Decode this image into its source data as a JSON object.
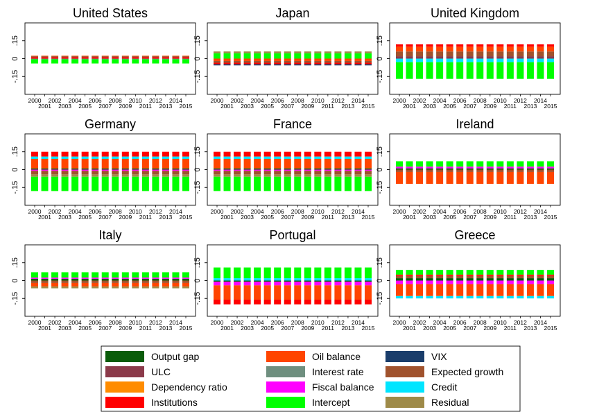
{
  "chart_data": {
    "type": "bar",
    "stacked": true,
    "x": [
      2000,
      2001,
      2002,
      2003,
      2004,
      2005,
      2006,
      2007,
      2008,
      2009,
      2010,
      2011,
      2012,
      2013,
      2014,
      2015
    ],
    "x_tick_labels_top": [
      "2000",
      "2002",
      "2004",
      "2006",
      "2008",
      "2010",
      "2012",
      "2014"
    ],
    "x_tick_labels_bottom": [
      "2001",
      "2003",
      "2005",
      "2007",
      "2009",
      "2011",
      "2013",
      "2015"
    ],
    "y_tick_labels": [
      "-.15",
      "0",
      ".15"
    ],
    "yticks": [
      -0.15,
      0,
      0.15
    ],
    "ylim": [
      -0.3,
      0.3
    ],
    "grid": false,
    "legend_position": "bottom",
    "components": [
      {
        "key": "og",
        "name": "Output gap",
        "color": "#0a5c0a"
      },
      {
        "key": "oil",
        "name": "Oil balance",
        "color": "#ff4500"
      },
      {
        "key": "vix",
        "name": "VIX",
        "color": "#1a3d6b"
      },
      {
        "key": "ulc",
        "name": "ULC",
        "color": "#8b3a4a"
      },
      {
        "key": "ir",
        "name": "Interest rate",
        "color": "#6f8f7f"
      },
      {
        "key": "eg",
        "name": "Expected growth",
        "color": "#a0522d"
      },
      {
        "key": "dep",
        "name": "Dependency ratio",
        "color": "#ff8c00"
      },
      {
        "key": "fb",
        "name": "Fiscal balance",
        "color": "#ff00ff"
      },
      {
        "key": "cr",
        "name": "Credit",
        "color": "#00e5ff"
      },
      {
        "key": "inst",
        "name": "Institutions",
        "color": "#ff0000"
      },
      {
        "key": "int",
        "name": "Intercept",
        "color": "#00ff00"
      },
      {
        "key": "res",
        "name": "Residual",
        "color": "#9e8a48"
      }
    ],
    "panels": [
      {
        "title": "United States",
        "first_year": 2000,
        "last_year": 2015,
        "pos_segments": [
          [
            "inst",
            0.012
          ],
          [
            "eg",
            0.008
          ],
          [
            "oil",
            0.004
          ]
        ],
        "neg_segments": [
          [
            "ir",
            0.006
          ],
          [
            "int",
            0.035
          ]
        ]
      },
      {
        "title": "Japan",
        "first_year": 2000,
        "last_year": 2015,
        "pos_segments": [
          [
            "int",
            0.045
          ],
          [
            "res",
            0.015
          ]
        ],
        "neg_segments": [
          [
            "oil",
            0.02
          ],
          [
            "eg",
            0.015
          ],
          [
            "inst",
            0.012
          ],
          [
            "vix",
            0.01
          ]
        ]
      },
      {
        "title": "United Kingdom",
        "first_year": 2000,
        "last_year": 2015,
        "pos_segments": [
          [
            "ulc",
            0.02
          ],
          [
            "eg",
            0.04
          ],
          [
            "oil",
            0.04
          ],
          [
            "inst",
            0.02
          ]
        ],
        "neg_segments": [
          [
            "cr",
            0.03
          ],
          [
            "int",
            0.14
          ]
        ]
      },
      {
        "title": "Germany",
        "first_year": 2000,
        "last_year": 2015,
        "pos_segments": [
          [
            "og",
            0.01
          ],
          [
            "oil",
            0.08
          ],
          [
            "cr",
            0.02
          ],
          [
            "inst",
            0.04
          ]
        ],
        "neg_segments": [
          [
            "fb",
            0.01
          ],
          [
            "eg",
            0.03
          ],
          [
            "res",
            0.02
          ],
          [
            "int",
            0.12
          ]
        ]
      },
      {
        "title": "France",
        "first_year": 2000,
        "last_year": 2015,
        "pos_segments": [
          [
            "og",
            0.01
          ],
          [
            "oil",
            0.08
          ],
          [
            "cr",
            0.02
          ],
          [
            "inst",
            0.04
          ]
        ],
        "neg_segments": [
          [
            "fb",
            0.01
          ],
          [
            "eg",
            0.03
          ],
          [
            "res",
            0.02
          ],
          [
            "int",
            0.12
          ]
        ]
      },
      {
        "title": "Ireland",
        "first_year": 2000,
        "last_year": 2015,
        "pos_segments": [
          [
            "og",
            0.01
          ],
          [
            "fb",
            0.015
          ],
          [
            "int",
            0.045
          ]
        ],
        "neg_segments": [
          [
            "eg",
            0.02
          ],
          [
            "oil",
            0.1
          ]
        ]
      },
      {
        "title": "Italy",
        "first_year": 2000,
        "last_year": 2015,
        "pos_segments": [
          [
            "og",
            0.015
          ],
          [
            "fb",
            0.01
          ],
          [
            "int",
            0.045
          ]
        ],
        "neg_segments": [
          [
            "eg",
            0.02
          ],
          [
            "oil",
            0.03
          ],
          [
            "res",
            0.015
          ]
        ]
      },
      {
        "title": "Portugal",
        "first_year": 2000,
        "last_year": 2015,
        "pos_segments": [
          [
            "cr",
            0.02
          ],
          [
            "int",
            0.09
          ]
        ],
        "neg_segments": [
          [
            "og",
            0.01
          ],
          [
            "fb",
            0.03
          ],
          [
            "oil",
            0.12
          ],
          [
            "inst",
            0.04
          ]
        ]
      },
      {
        "title": "Greece",
        "first_year": 2000,
        "last_year": 2015,
        "pos_segments": [
          [
            "og",
            0.02
          ],
          [
            "eg",
            0.02
          ],
          [
            "inst",
            0.01
          ],
          [
            "int",
            0.04
          ]
        ],
        "neg_segments": [
          [
            "fb",
            0.03
          ],
          [
            "oil",
            0.1
          ],
          [
            "cr",
            0.02
          ]
        ]
      }
    ]
  }
}
